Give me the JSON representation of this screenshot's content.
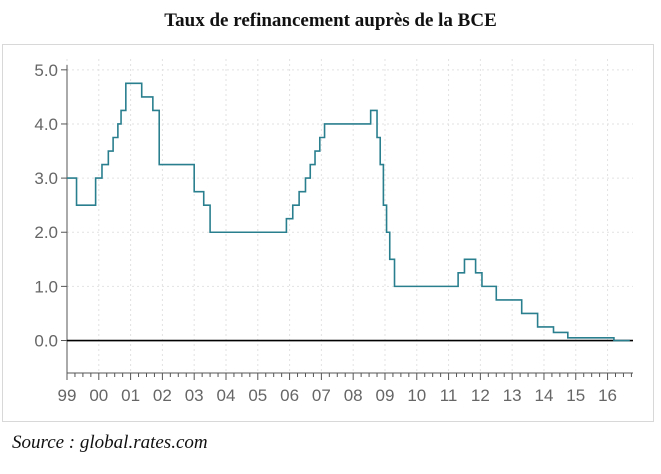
{
  "title": "Taux de refinancement auprès de la BCE",
  "source": "Source :  global.rates.com",
  "chart_data": {
    "type": "line",
    "step": true,
    "title": "Taux de refinancement auprès de la BCE",
    "xlabel": "",
    "ylabel": "",
    "x_tick_labels": [
      "99",
      "00",
      "01",
      "02",
      "03",
      "04",
      "05",
      "06",
      "07",
      "08",
      "09",
      "10",
      "11",
      "12",
      "13",
      "14",
      "15",
      "16"
    ],
    "y_tick_labels": [
      "0.0",
      "1.0",
      "2.0",
      "3.0",
      "4.0",
      "5.0"
    ],
    "ylim": [
      -0.6,
      5.2
    ],
    "xlim": [
      1999.0,
      2016.8
    ],
    "grid": true,
    "line_color": "#2a7f8f",
    "zero_line_color": "#000000",
    "series": [
      {
        "x": [
          1999.0,
          1999.3,
          1999.9,
          2000.1,
          2000.3,
          2000.45,
          2000.6,
          2000.7,
          2000.85,
          2001.35,
          2001.7,
          2001.9,
          2003.0,
          2003.3,
          2003.5,
          2005.9,
          2006.1,
          2006.3,
          2006.5,
          2006.65,
          2006.8,
          2006.95,
          2007.1,
          2007.25,
          2007.45,
          2007.7,
          2008.55,
          2008.75,
          2008.85,
          2008.95,
          2009.05,
          2009.15,
          2009.3,
          2011.3,
          2011.5,
          2011.85,
          2012.05,
          2012.5,
          2013.3,
          2013.8,
          2014.3,
          2014.75,
          2015.0,
          2016.2,
          2016.7
        ],
        "y": [
          3.0,
          2.5,
          3.0,
          3.25,
          3.5,
          3.75,
          4.0,
          4.25,
          4.75,
          4.5,
          4.25,
          3.25,
          2.75,
          2.5,
          2.0,
          2.25,
          2.5,
          2.75,
          3.0,
          3.25,
          3.5,
          3.75,
          4.0,
          4.0,
          4.0,
          4.0,
          4.25,
          3.75,
          3.25,
          2.5,
          2.0,
          1.5,
          1.0,
          1.25,
          1.5,
          1.25,
          1.0,
          0.75,
          0.5,
          0.25,
          0.15,
          0.05,
          0.05,
          0.0,
          0.0
        ]
      }
    ]
  }
}
